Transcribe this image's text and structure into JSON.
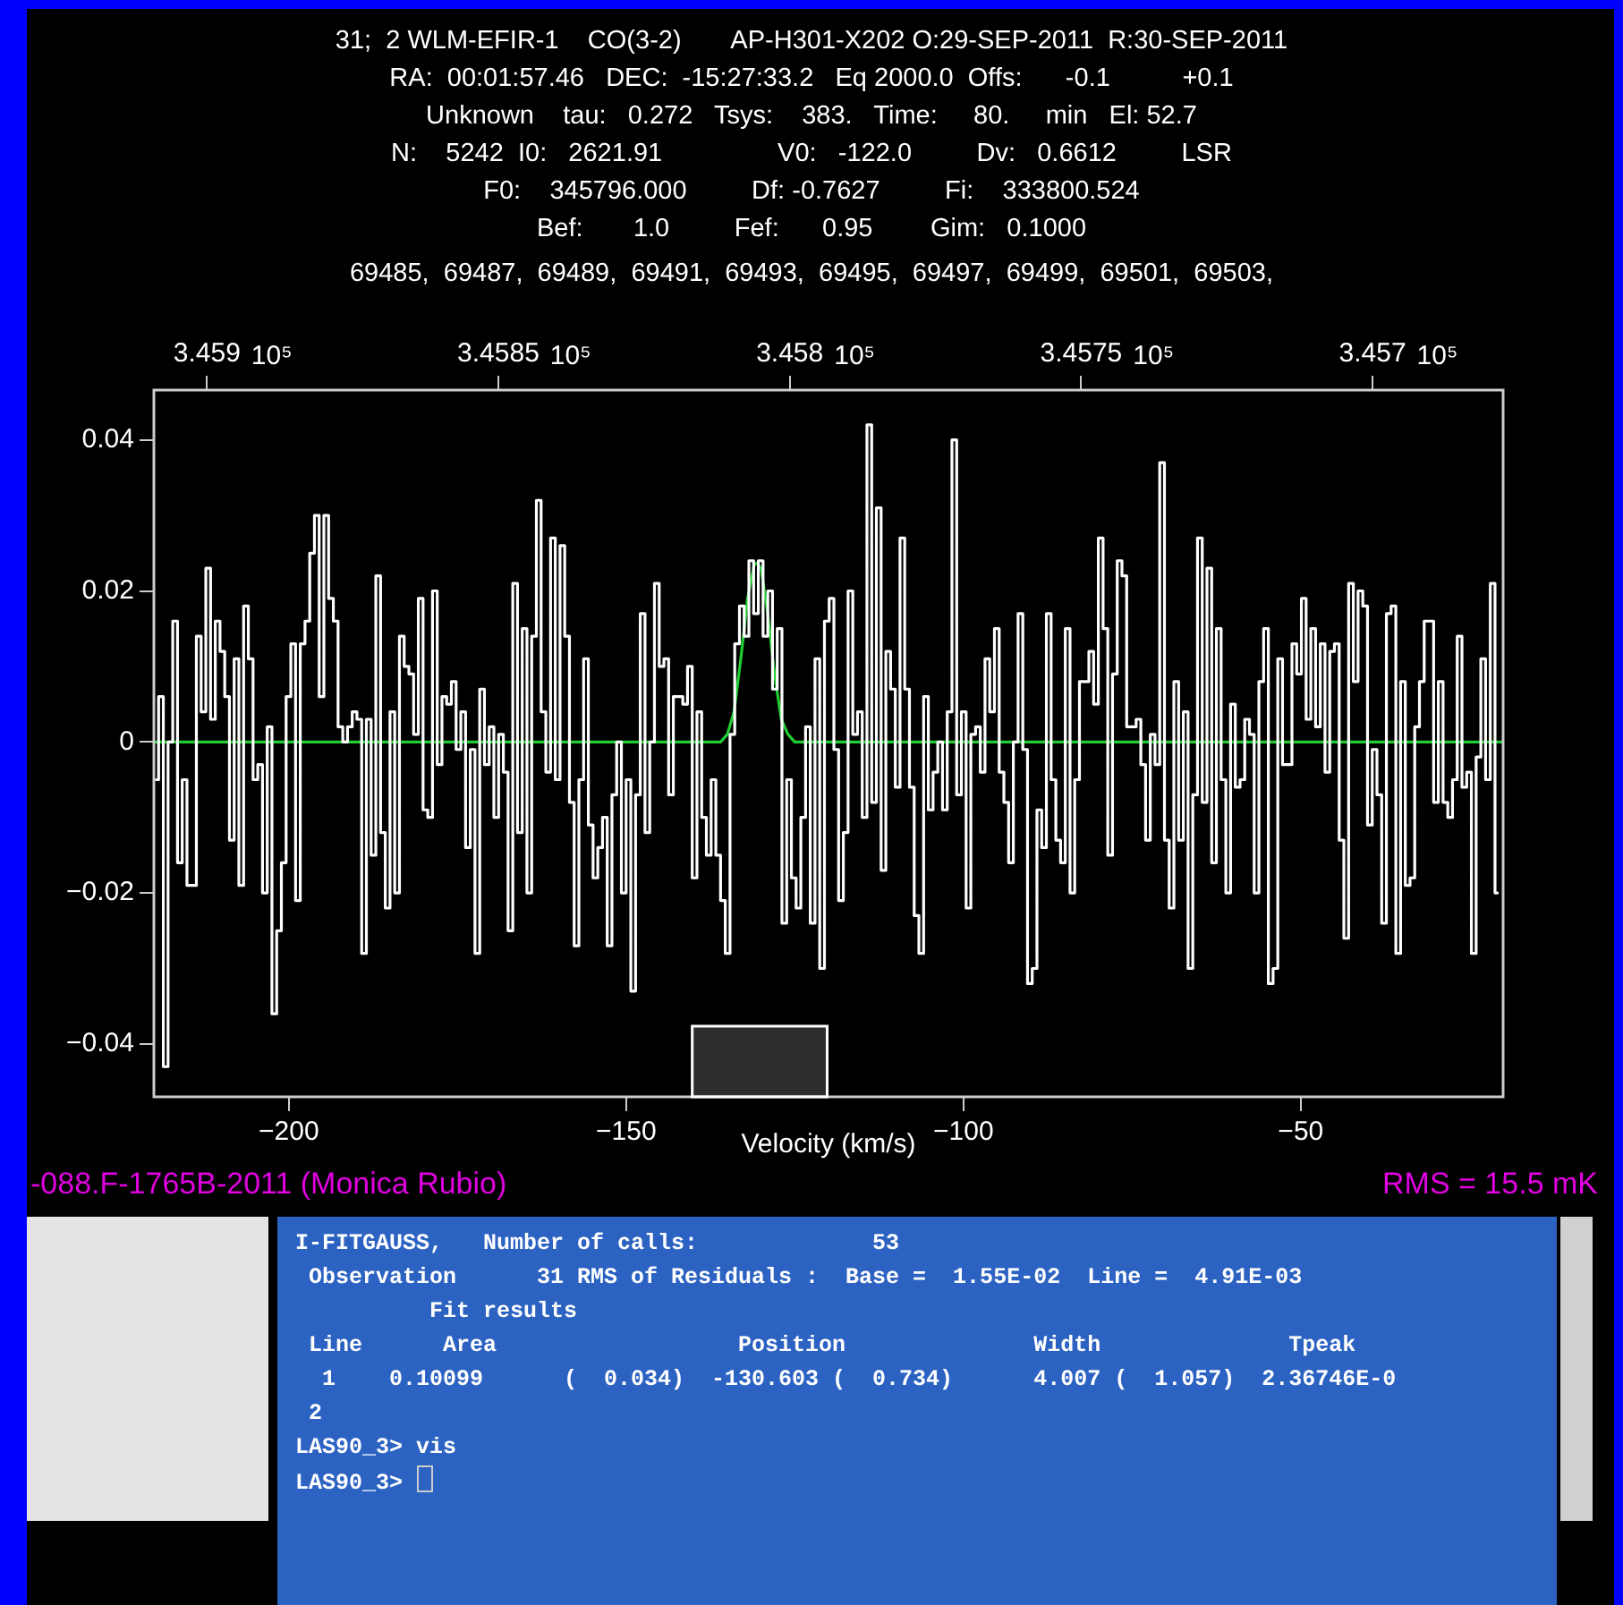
{
  "chart_data": {
    "type": "step",
    "title": "31;  2 WLM-EFIR-1    CO(3-2)       AP-H301-X202 O:29-SEP-2011  R:30-SEP-2011",
    "annotations": [
      "RA:  00:01:57.46   DEC:  -15:27:33.2   Eq 2000.0  Offs:      -0.1          +0.1",
      "Unknown    tau:   0.272   Tsys:    383.   Time:     80.     min   El: 52.7",
      "N:    5242  I0:   2621.91                V0:   -122.0         Dv:   0.6612         LSR",
      "F0:    345796.000         Df: -0.7627         Fi:    333800.524",
      "Bef:       1.0         Fef:      0.95        Gim:   0.1000",
      "69485,  69487,  69489,  69491,  69493,  69495,  69497,  69499,  69501,  69503,",
      "-088.F-1765B-2011 (Monica Rubio)",
      "RMS = 15.5 mK",
      "I-FITGAUSS,   Number of calls:             53",
      " Observation      31 RMS of Residuals :  Base =  1.55E-02  Line =  4.91E-03",
      "          Fit results",
      " Line      Area                  Position              Width              Tpeak",
      "  1    0.10099      (  0.034)  -130.603 (  0.734)      4.007 (  1.057)  2.36746E-0",
      " 2",
      "LAS90_3> vis",
      "LAS90_3> "
    ],
    "xlabel": "Velocity (km/s)",
    "xlim": [
      -220,
      -20
    ],
    "xticks": [
      -200,
      -150,
      -100,
      -50
    ],
    "ylim": [
      -0.047,
      0.0466
    ],
    "yticks": [
      -0.04,
      -0.02,
      0,
      0.02,
      0.04
    ],
    "x2lim": [
      3.459091,
      3.456776
    ],
    "x2label": "10⁵",
    "x2ticks": [
      3.459,
      3.4585,
      3.458,
      3.4575,
      3.457
    ],
    "marker": "none",
    "bands": [
      {
        "axis": "x",
        "from": -140.2,
        "to": -120.2,
        "color": "#ffffff"
      }
    ],
    "series": [
      {
        "type": "step",
        "color": "#ffffff",
        "x": [
          -219.65,
          -218.95,
          -218.25,
          -217.55,
          -216.85,
          -216.15,
          -215.45,
          -214.75,
          -214.05,
          -213.35,
          -212.65,
          -211.95,
          -211.25,
          -210.55,
          -209.85,
          -209.15,
          -208.45,
          -207.75,
          -207.05,
          -206.35,
          -205.65,
          -204.95,
          -204.25,
          -203.55,
          -202.85,
          -202.15,
          -201.45,
          -200.75,
          -200.05,
          -199.35,
          -198.65,
          -197.95,
          -197.25,
          -196.55,
          -195.85,
          -195.15,
          -194.45,
          -193.75,
          -193.05,
          -192.35,
          -191.65,
          -190.95,
          -190.25,
          -189.55,
          -188.85,
          -188.15,
          -187.45,
          -186.75,
          -186.05,
          -185.35,
          -184.65,
          -183.95,
          -183.25,
          -182.55,
          -181.85,
          -181.15,
          -180.45,
          -179.75,
          -179.05,
          -178.35,
          -177.65,
          -176.95,
          -176.25,
          -175.55,
          -174.85,
          -174.15,
          -173.45,
          -172.75,
          -172.05,
          -171.35,
          -170.65,
          -169.95,
          -169.25,
          -168.55,
          -167.85,
          -167.15,
          -166.45,
          -165.75,
          -165.05,
          -164.35,
          -163.65,
          -162.95,
          -162.25,
          -161.55,
          -160.85,
          -160.15,
          -159.45,
          -158.75,
          -158.05,
          -157.35,
          -156.65,
          -155.95,
          -155.25,
          -154.55,
          -153.85,
          -153.15,
          -152.45,
          -151.75,
          -151.05,
          -150.35,
          -149.65,
          -148.95,
          -148.25,
          -147.55,
          -146.85,
          -146.15,
          -145.45,
          -144.75,
          -144.05,
          -143.35,
          -142.65,
          -141.95,
          -141.25,
          -140.55,
          -139.85,
          -139.15,
          -138.45,
          -137.75,
          -137.05,
          -136.35,
          -135.65,
          -134.95,
          -134.25,
          -133.55,
          -132.85,
          -132.15,
          -131.45,
          -130.75,
          -130.05,
          -129.35,
          -128.65,
          -127.95,
          -127.25,
          -126.55,
          -125.85,
          -125.15,
          -124.45,
          -123.75,
          -123.05,
          -122.35,
          -121.65,
          -120.95,
          -120.25,
          -119.55,
          -118.85,
          -118.15,
          -117.45,
          -116.75,
          -116.05,
          -115.35,
          -114.65,
          -113.95,
          -113.25,
          -112.55,
          -111.85,
          -111.15,
          -110.45,
          -109.75,
          -109.05,
          -108.35,
          -107.65,
          -106.95,
          -106.25,
          -105.55,
          -104.85,
          -104.15,
          -103.45,
          -102.75,
          -102.05,
          -101.35,
          -100.65,
          -99.95,
          -99.25,
          -98.55,
          -97.85,
          -97.15,
          -96.45,
          -95.75,
          -95.05,
          -94.35,
          -93.65,
          -92.95,
          -92.25,
          -91.55,
          -90.85,
          -90.15,
          -89.45,
          -88.75,
          -88.05,
          -87.35,
          -86.65,
          -85.95,
          -85.25,
          -84.55,
          -83.85,
          -83.15,
          -82.45,
          -81.75,
          -81.05,
          -80.35,
          -79.65,
          -78.95,
          -78.25,
          -77.55,
          -76.85,
          -76.15,
          -75.45,
          -74.75,
          -74.05,
          -73.35,
          -72.65,
          -71.95,
          -71.25,
          -70.55,
          -69.85,
          -69.15,
          -68.45,
          -67.75,
          -67.05,
          -66.35,
          -65.65,
          -64.95,
          -64.25,
          -63.55,
          -62.85,
          -62.15,
          -61.45,
          -60.75,
          -60.05,
          -59.35,
          -58.65,
          -57.95,
          -57.25,
          -56.55,
          -55.85,
          -55.15,
          -54.45,
          -53.75,
          -53.05,
          -52.35,
          -51.65,
          -50.95,
          -50.25,
          -49.55,
          -48.85,
          -48.15,
          -47.45,
          -46.75,
          -46.05,
          -45.35,
          -44.65,
          -43.95,
          -43.25,
          -42.55,
          -41.85,
          -41.15,
          -40.45,
          -39.75,
          -39.05,
          -38.35,
          -37.65,
          -36.95,
          -36.25,
          -35.55,
          -34.85,
          -34.15,
          -33.45,
          -32.75,
          -32.05,
          -31.35,
          -30.65,
          -29.95,
          -29.25,
          -28.55,
          -27.85,
          -27.15,
          -26.45,
          -25.75,
          -25.05,
          -24.35,
          -23.65,
          -22.95,
          -22.25,
          -21.55,
          -20.85
        ],
        "values": [
          -0.005,
          0.006,
          -0.043,
          0,
          0.016,
          -0.016,
          -0.005,
          -0.019,
          -0.019,
          0.014,
          0.004,
          0.023,
          0.003,
          0.016,
          0.012,
          0.006,
          -0.013,
          0.011,
          -0.019,
          0.018,
          0.011,
          -0.005,
          -0.003,
          -0.02,
          0.002,
          -0.036,
          -0.025,
          -0.016,
          0.006,
          0.013,
          -0.021,
          0.013,
          0.016,
          0.025,
          0.03,
          0.006,
          0.03,
          0.019,
          0.016,
          0.002,
          0.0,
          0.002,
          0.004,
          0.003,
          -0.028,
          0.003,
          -0.015,
          0.022,
          -0.012,
          -0.022,
          0.004,
          -0.02,
          0.014,
          0.01,
          0.009,
          0.001,
          0.019,
          -0.009,
          -0.01,
          0.02,
          -0.003,
          0.006,
          0.005,
          0.008,
          -0.001,
          0.004,
          -0.014,
          -0.001,
          -0.028,
          0.007,
          -0.003,
          0.002,
          -0.01,
          0.001,
          -0.004,
          -0.025,
          0.021,
          -0.012,
          0.015,
          -0.02,
          0.014,
          0.032,
          0.004,
          -0.004,
          0.027,
          -0.005,
          0.026,
          0.014,
          -0.008,
          -0.027,
          -0.005,
          0.011,
          -0.011,
          -0.018,
          -0.014,
          -0.01,
          -0.027,
          -0.007,
          0.0,
          -0.02,
          -0.005,
          -0.033,
          -0.007,
          0.017,
          -0.012,
          0.0,
          0.021,
          0.01,
          0.011,
          -0.007,
          0.006,
          0.006,
          0.005,
          0.01,
          -0.018,
          0.004,
          -0.01,
          -0.015,
          -0.005,
          -0.015,
          -0.021,
          -0.028,
          0.001,
          0.013,
          0.018,
          0.014,
          0.024,
          0.017,
          0.024,
          0.014,
          0.02,
          0.007,
          0.015,
          -0.024,
          -0.005,
          -0.018,
          -0.022,
          -0.01,
          0.002,
          -0.024,
          0.011,
          -0.03,
          0.016,
          0.019,
          -0.001,
          -0.021,
          -0.012,
          0.02,
          0.001,
          0.004,
          -0.01,
          0.042,
          -0.008,
          0.031,
          -0.017,
          0.012,
          0.007,
          -0.006,
          0.027,
          0.007,
          -0.006,
          -0.023,
          -0.028,
          0.006,
          -0.009,
          -0.004,
          0.0,
          -0.009,
          0.004,
          0.04,
          -0.007,
          0.004,
          -0.022,
          0.001,
          0.002,
          -0.004,
          0.011,
          0.004,
          0.015,
          -0.004,
          -0.008,
          -0.016,
          0.0,
          0.017,
          -0.001,
          -0.032,
          -0.03,
          -0.009,
          -0.014,
          0.017,
          -0.005,
          -0.013,
          -0.016,
          0.015,
          -0.02,
          -0.005,
          0.008,
          0.008,
          0.012,
          0.005,
          0.027,
          0.015,
          -0.015,
          0.009,
          0.024,
          0.022,
          0.002,
          0.002,
          0.003,
          -0.003,
          -0.013,
          0.001,
          -0.003,
          0.037,
          -0.013,
          -0.022,
          0.008,
          -0.013,
          0.004,
          -0.03,
          -0.007,
          0.027,
          -0.008,
          0.023,
          -0.016,
          0.015,
          -0.005,
          -0.02,
          0.005,
          -0.006,
          -0.005,
          0.003,
          0.001,
          -0.02,
          0.008,
          0.015,
          -0.032,
          -0.03,
          0.011,
          -0.003,
          -0.003,
          0.013,
          0.009,
          0.019,
          0.003,
          0.015,
          0.002,
          0.013,
          -0.004,
          0.012,
          0.013,
          -0.013,
          -0.026,
          0.021,
          0.008,
          0.02,
          0.018,
          -0.011,
          -0.001,
          -0.007,
          -0.024,
          0.017,
          0.018,
          -0.028,
          0.008,
          -0.019,
          -0.018,
          0.002,
          0.008,
          0.016,
          0.016,
          -0.008,
          0.008,
          -0.008,
          -0.01,
          -0.005,
          0.014,
          -0.006,
          -0.004,
          -0.028,
          -0.002,
          0.011,
          -0.005,
          0.021,
          -0.02
        ]
      },
      {
        "type": "line",
        "color": "#22cc33",
        "x": [
          -220,
          -136,
          -135,
          -134,
          -133,
          -132,
          -131,
          -130.6,
          -130,
          -129,
          -128,
          -127,
          -126,
          -125,
          -20
        ],
        "values": [
          0,
          0,
          0.001,
          0.004,
          0.011,
          0.019,
          0.0235,
          0.0237,
          0.023,
          0.017,
          0.009,
          0.003,
          0.001,
          0,
          0
        ]
      }
    ]
  }
}
